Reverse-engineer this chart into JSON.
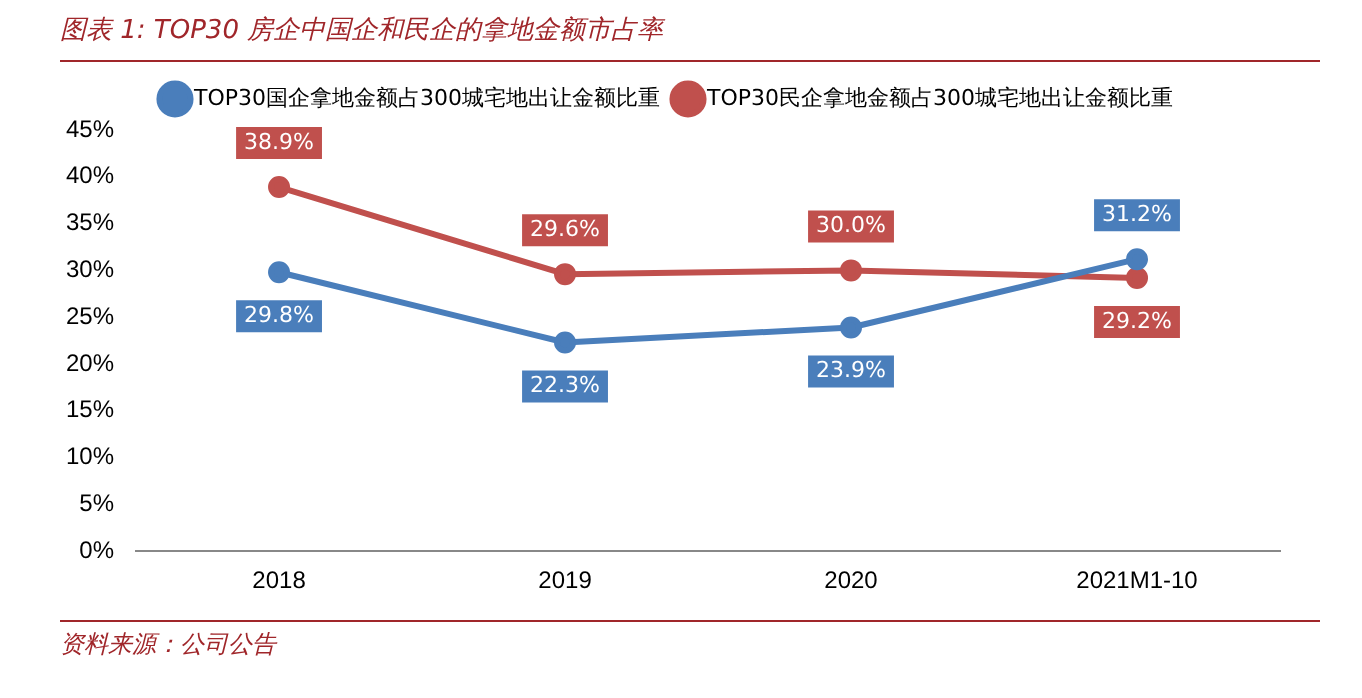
{
  "chart_data": {
    "type": "line",
    "title": "图表 1:  TOP30 房企中国企和民企的拿地金额市占率",
    "categories": [
      "2018",
      "2019",
      "2020",
      "2021M1-10"
    ],
    "series": [
      {
        "name": "TOP30国企拿地金额占300城宅地出让金额比重",
        "color": "#4a7ebb",
        "values": [
          29.8,
          22.3,
          23.9,
          31.2
        ],
        "value_labels": [
          "29.8%",
          "22.3%",
          "23.9%",
          "31.2%"
        ]
      },
      {
        "name": "TOP30民企拿地金额占300城宅地出让金额比重",
        "color": "#c0504d",
        "values": [
          38.9,
          29.6,
          30.0,
          29.2
        ],
        "value_labels": [
          "38.9%",
          "29.6%",
          "30.0%",
          "29.2%"
        ]
      }
    ],
    "ylim": [
      0,
      45
    ],
    "yticks": [
      {
        "value": 0,
        "label": "0%"
      },
      {
        "value": 5,
        "label": "5%"
      },
      {
        "value": 10,
        "label": "10%"
      },
      {
        "value": 15,
        "label": "15%"
      },
      {
        "value": 20,
        "label": "20%"
      },
      {
        "value": 25,
        "label": "25%"
      },
      {
        "value": 30,
        "label": "30%"
      },
      {
        "value": 35,
        "label": "35%"
      },
      {
        "value": 40,
        "label": "40%"
      },
      {
        "value": 45,
        "label": "45%"
      }
    ],
    "grid": false,
    "legend": "top",
    "marker": "circle",
    "line_style": "solid",
    "annotations": [
      "资料来源：公司公告"
    ]
  }
}
